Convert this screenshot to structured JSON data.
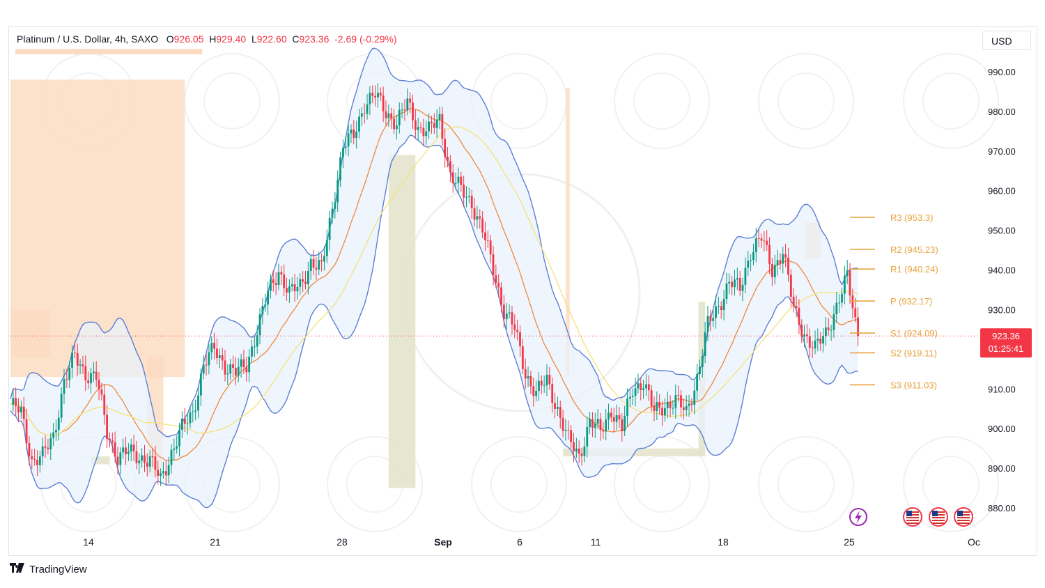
{
  "legend": {
    "symbol": "Platinum / U.S. Dollar, 4h, SAXO",
    "o_label": "O",
    "o": "926.05",
    "h_label": "H",
    "h": "929.40",
    "l_label": "L",
    "l": "922.60",
    "c_label": "C",
    "c": "923.36",
    "change": "-2.69 (-0.29%)"
  },
  "currency": "USD",
  "brand": "TradingView",
  "price_tag": {
    "price": "923.36",
    "countdown": "01:25:41"
  },
  "colors": {
    "up": "#089981",
    "down": "#f23645",
    "bb": "#5b7fd6",
    "bb_fill": "#eaf2fb",
    "ma_fast": "#f0883e",
    "ma_slow": "#f5e27a",
    "pivot": "#e8a33d",
    "zone_supply": "#fbdcc2",
    "zone_demand": "#e4e4cc"
  },
  "chart_data": {
    "type": "candlestick",
    "y_axis": {
      "min": 875,
      "max": 995,
      "ticks": [
        "990.00",
        "980.00",
        "970.00",
        "960.00",
        "950.00",
        "940.00",
        "930.00",
        "920.00",
        "910.00",
        "900.00",
        "890.00",
        "880.00"
      ]
    },
    "x_labels": [
      "14",
      "21",
      "28",
      "Sep",
      "6",
      "11",
      "18",
      "25",
      "Oc"
    ],
    "pivots": [
      {
        "label": "R3",
        "value": 953.3,
        "text": "R3 (953.3)"
      },
      {
        "label": "R2",
        "value": 945.23,
        "text": "R2 (945.23)"
      },
      {
        "label": "R1",
        "value": 940.24,
        "text": "R1 (940.24)"
      },
      {
        "label": "P",
        "value": 932.17,
        "text": "P (932.17)"
      },
      {
        "label": "S1",
        "value": 924.09,
        "text": "S1 (924.09)"
      },
      {
        "label": "S2",
        "value": 919.11,
        "text": "S2 (919.11)"
      },
      {
        "label": "S3",
        "value": 911.03,
        "text": "S3 (911.03)"
      }
    ],
    "last_price": 923.36,
    "path_anchors": [
      [
        0,
        906
      ],
      [
        4,
        904
      ],
      [
        8,
        892
      ],
      [
        12,
        893
      ],
      [
        16,
        898
      ],
      [
        20,
        912
      ],
      [
        24,
        918
      ],
      [
        28,
        914
      ],
      [
        32,
        913
      ],
      [
        36,
        899
      ],
      [
        40,
        893
      ],
      [
        44,
        894
      ],
      [
        48,
        893
      ],
      [
        52,
        892
      ],
      [
        56,
        887
      ],
      [
        60,
        894
      ],
      [
        64,
        900
      ],
      [
        68,
        904
      ],
      [
        72,
        916
      ],
      [
        76,
        920
      ],
      [
        80,
        916
      ],
      [
        84,
        914
      ],
      [
        88,
        916
      ],
      [
        92,
        925
      ],
      [
        96,
        934
      ],
      [
        100,
        940
      ],
      [
        104,
        934
      ],
      [
        108,
        936
      ],
      [
        112,
        942
      ],
      [
        116,
        940
      ],
      [
        120,
        956
      ],
      [
        124,
        971
      ],
      [
        128,
        974
      ],
      [
        132,
        982
      ],
      [
        136,
        984
      ],
      [
        140,
        980
      ],
      [
        144,
        977
      ],
      [
        148,
        982
      ],
      [
        152,
        976
      ],
      [
        156,
        975
      ],
      [
        160,
        978
      ],
      [
        164,
        964
      ],
      [
        168,
        960
      ],
      [
        172,
        957
      ],
      [
        176,
        950
      ],
      [
        180,
        940
      ],
      [
        184,
        930
      ],
      [
        188,
        925
      ],
      [
        192,
        914
      ],
      [
        196,
        909
      ],
      [
        200,
        912
      ],
      [
        204,
        905
      ],
      [
        208,
        897
      ],
      [
        212,
        893
      ],
      [
        216,
        902
      ],
      [
        220,
        899
      ],
      [
        224,
        905
      ],
      [
        228,
        900
      ],
      [
        232,
        910
      ],
      [
        236,
        912
      ],
      [
        240,
        904
      ],
      [
        244,
        906
      ],
      [
        248,
        907
      ],
      [
        252,
        904
      ],
      [
        256,
        913
      ],
      [
        260,
        926
      ],
      [
        264,
        931
      ],
      [
        268,
        937
      ],
      [
        272,
        935
      ],
      [
        276,
        945
      ],
      [
        280,
        948
      ],
      [
        284,
        940
      ],
      [
        288,
        945
      ],
      [
        292,
        930
      ],
      [
        296,
        924
      ],
      [
        300,
        920
      ],
      [
        304,
        924
      ],
      [
        308,
        931
      ],
      [
        312,
        938
      ],
      [
        316,
        923.36
      ]
    ],
    "supply_zones": [
      {
        "from": 0,
        "to": 65,
        "top": 988,
        "bottom": 913
      },
      {
        "from": 0,
        "to": 15,
        "top": 930,
        "bottom": 918
      },
      {
        "from": 51,
        "to": 57,
        "top": 918,
        "bottom": 888
      },
      {
        "from": 207,
        "to": 208.5,
        "top": 986,
        "bottom": 913
      },
      {
        "from": 296,
        "to": 302,
        "top": 952,
        "bottom": 943
      }
    ],
    "demand_zones": [
      {
        "from": 30,
        "to": 37,
        "top": 893,
        "bottom": 891
      },
      {
        "from": 141,
        "to": 151,
        "top": 969,
        "bottom": 885
      },
      {
        "from": 206,
        "to": 259,
        "top": 895,
        "bottom": 893
      },
      {
        "from": 256.5,
        "to": 259,
        "top": 932,
        "bottom": 893
      }
    ],
    "marker_icons": [
      "lightning-icon",
      "us-flag-icon",
      "us-flag-icon",
      "us-flag-icon"
    ]
  }
}
